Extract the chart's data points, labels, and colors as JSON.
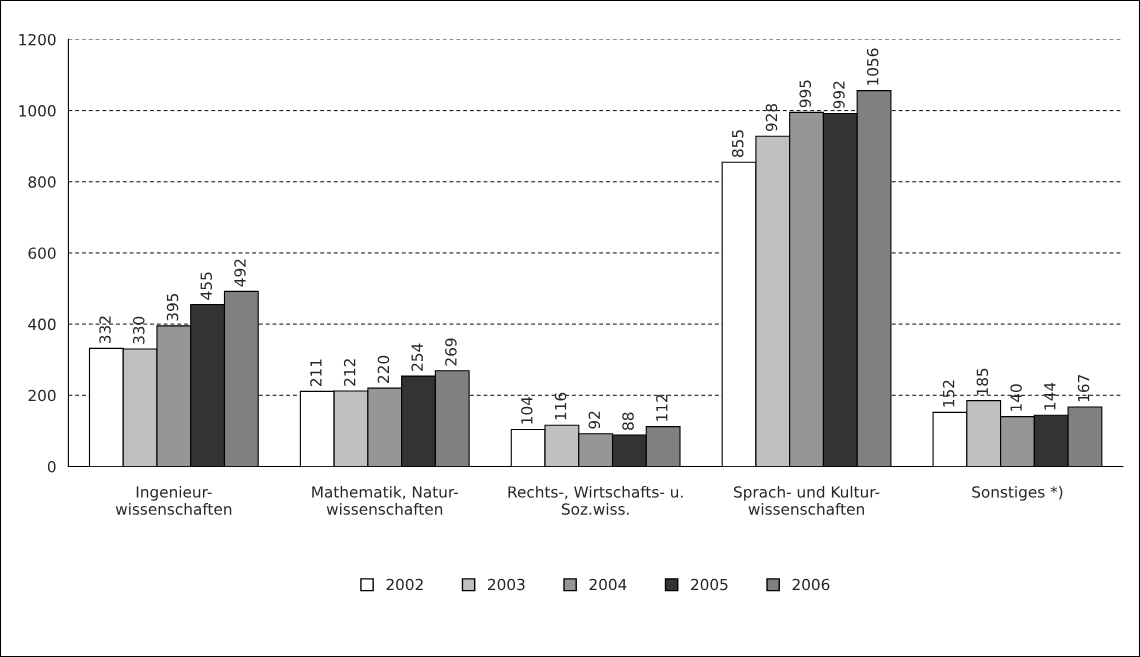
{
  "chart_data": {
    "type": "bar",
    "categories": [
      "Ingenieur-\nwissenschaften",
      "Mathematik, Natur-\nwissenschaften",
      "Rechts-, Wirtschafts- u.\nSoz.wiss.",
      "Sprach- und Kultur-\nwissenschaften",
      "Sonstiges *)"
    ],
    "series": [
      {
        "name": "2002",
        "color": "#ffffff",
        "values": [
          332,
          211,
          104,
          855,
          152
        ]
      },
      {
        "name": "2003",
        "color": "#c0c0c0",
        "values": [
          330,
          212,
          116,
          928,
          185
        ]
      },
      {
        "name": "2004",
        "color": "#969696",
        "values": [
          395,
          220,
          92,
          995,
          140
        ]
      },
      {
        "name": "2005",
        "color": "#333333",
        "values": [
          455,
          254,
          88,
          992,
          144
        ]
      },
      {
        "name": "2006",
        "color": "#808080",
        "values": [
          492,
          269,
          112,
          1056,
          167
        ]
      }
    ],
    "ylim": [
      0,
      1200
    ],
    "yticks": [
      0,
      200,
      400,
      600,
      800,
      1000,
      1200
    ],
    "grid": "y",
    "legend": "bottom",
    "data_labels": true
  }
}
